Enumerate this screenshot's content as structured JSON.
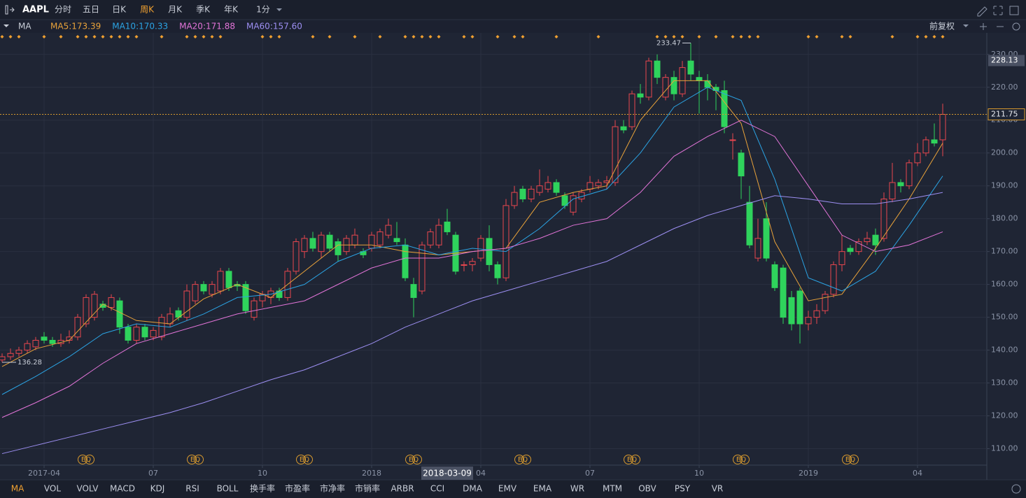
{
  "toolbar": {
    "symbol": "AAPL",
    "periods": [
      "分时",
      "五日",
      "日K",
      "周K",
      "月K",
      "季K",
      "年K"
    ],
    "active": 3,
    "interval": "1分"
  },
  "indicator_row": {
    "name": "MA",
    "adjust": "前复权"
  },
  "chart_data": {
    "type": "candlestick",
    "ohlc": [
      [
        137,
        139,
        136.28,
        138
      ],
      [
        138,
        140.5,
        137,
        139
      ],
      [
        139,
        141,
        138,
        140
      ],
      [
        140,
        143,
        139,
        142
      ],
      [
        141,
        144,
        140,
        143
      ],
      [
        144,
        145.5,
        142,
        143
      ],
      [
        143,
        144,
        141,
        142
      ],
      [
        142,
        145,
        141,
        143
      ],
      [
        143,
        146,
        142,
        144
      ],
      [
        144,
        151,
        143,
        150
      ],
      [
        148,
        157,
        147,
        156
      ],
      [
        150,
        158,
        149,
        157
      ],
      [
        154,
        155,
        152,
        153
      ],
      [
        153,
        157,
        152,
        156
      ],
      [
        155,
        156,
        145,
        147
      ],
      [
        147,
        148,
        142,
        143
      ],
      [
        143,
        148,
        142,
        147
      ],
      [
        147,
        148,
        143,
        144
      ],
      [
        144,
        147,
        143,
        146
      ],
      [
        144,
        151,
        143,
        150
      ],
      [
        148,
        153,
        147,
        151
      ],
      [
        152,
        153,
        149,
        150
      ],
      [
        150,
        160,
        149,
        158
      ],
      [
        155,
        161,
        154,
        160
      ],
      [
        160,
        161,
        157,
        158
      ],
      [
        157,
        161,
        156,
        160
      ],
      [
        158,
        165,
        157,
        164
      ],
      [
        164,
        165,
        158,
        159
      ],
      [
        160,
        161,
        158,
        159.5
      ],
      [
        160,
        161,
        151,
        152
      ],
      [
        150,
        156,
        149,
        155
      ],
      [
        155,
        158,
        153,
        157
      ],
      [
        156,
        159,
        154,
        158
      ],
      [
        158,
        159,
        155,
        156
      ],
      [
        156,
        165,
        155,
        164
      ],
      [
        164,
        174,
        163,
        173
      ],
      [
        170,
        175,
        168,
        174
      ],
      [
        174,
        176,
        170,
        171
      ],
      [
        170,
        176,
        168,
        175
      ],
      [
        175,
        176,
        170,
        171
      ],
      [
        173,
        174,
        167,
        169
      ],
      [
        170,
        175,
        169,
        174
      ],
      [
        172,
        177,
        171,
        175
      ],
      [
        170,
        171,
        168,
        169
      ],
      [
        171,
        176,
        170,
        175
      ],
      [
        172,
        177,
        171,
        176
      ],
      [
        175,
        180,
        174,
        178
      ],
      [
        174,
        179,
        172,
        173
      ],
      [
        172,
        174,
        161,
        162
      ],
      [
        160,
        162,
        150,
        156
      ],
      [
        158,
        173,
        157,
        172
      ],
      [
        172,
        177,
        171,
        176
      ],
      [
        172,
        180,
        171,
        178
      ],
      [
        179,
        183,
        175,
        176
      ],
      [
        175,
        176,
        163,
        164
      ],
      [
        166,
        167,
        164,
        166
      ],
      [
        166,
        168,
        164,
        167
      ],
      [
        168,
        175,
        167,
        174
      ],
      [
        174,
        178,
        164,
        166
      ],
      [
        166,
        167,
        160,
        162
      ],
      [
        162,
        186,
        161,
        184
      ],
      [
        184,
        190,
        183,
        188
      ],
      [
        189,
        190,
        185,
        186
      ],
      [
        186,
        190,
        185,
        189
      ],
      [
        188,
        195,
        187,
        190
      ],
      [
        189,
        193,
        188,
        191
      ],
      [
        191,
        192,
        187,
        188
      ],
      [
        187,
        188,
        183,
        184
      ],
      [
        182,
        188,
        181,
        187
      ],
      [
        186,
        189,
        185,
        188
      ],
      [
        189,
        193,
        188,
        191
      ],
      [
        190,
        192,
        189,
        191
      ],
      [
        191,
        193,
        189,
        191.5
      ],
      [
        191,
        210,
        190,
        208
      ],
      [
        208,
        210,
        206,
        207
      ],
      [
        208,
        219,
        207,
        218
      ],
      [
        218,
        221,
        215,
        217
      ],
      [
        217,
        229,
        216,
        228
      ],
      [
        228,
        230,
        221,
        223
      ],
      [
        217,
        224,
        216,
        223
      ],
      [
        223,
        225,
        216,
        218
      ],
      [
        218,
        228,
        217,
        226
      ],
      [
        228,
        233.47,
        222,
        224
      ],
      [
        223,
        225,
        212,
        222
      ],
      [
        222,
        224,
        216,
        220
      ],
      [
        220,
        221,
        213,
        219
      ],
      [
        219,
        222,
        206,
        208
      ],
      [
        204,
        206,
        198,
        204
      ],
      [
        200,
        201,
        186,
        193
      ],
      [
        185,
        190,
        171,
        172
      ],
      [
        168,
        180,
        167,
        174
      ],
      [
        180,
        185,
        167,
        168
      ],
      [
        166,
        167,
        158,
        159
      ],
      [
        165,
        166,
        148,
        150
      ],
      [
        156,
        158,
        146,
        148
      ],
      [
        158,
        159,
        142,
        148
      ],
      [
        148,
        152,
        146,
        150
      ],
      [
        150,
        154,
        148,
        152
      ],
      [
        152,
        158,
        151,
        157
      ],
      [
        157,
        167,
        156,
        166
      ],
      [
        166,
        175,
        164,
        170
      ],
      [
        171,
        172,
        169,
        170
      ],
      [
        170,
        174,
        169,
        173
      ],
      [
        173,
        176,
        172,
        174
      ],
      [
        175,
        177,
        169,
        172
      ],
      [
        174,
        188,
        173,
        186
      ],
      [
        186,
        197,
        185,
        191
      ],
      [
        191,
        192,
        188,
        190
      ],
      [
        190,
        198,
        189,
        197
      ],
      [
        197,
        203,
        196,
        200
      ],
      [
        200,
        205,
        199,
        204
      ],
      [
        204,
        209,
        202,
        203
      ],
      [
        204,
        215,
        199,
        211.75
      ]
    ],
    "colors": {
      "up": "#e8464e",
      "down": "#2fd35c"
    },
    "xlim": [
      -0.25,
      117.25
    ],
    "ylim": [
      105,
      234
    ],
    "yticks": [
      {
        "value": 110,
        "label": "110.00"
      },
      {
        "value": 120,
        "label": "120.00"
      },
      {
        "value": 130,
        "label": "130.00"
      },
      {
        "value": 140,
        "label": "140.00"
      },
      {
        "value": 150,
        "label": "150.00"
      },
      {
        "value": 160,
        "label": "160.00"
      },
      {
        "value": 170,
        "label": "170.00"
      },
      {
        "value": 180,
        "label": "180.00"
      },
      {
        "value": 190,
        "label": "190.00"
      },
      {
        "value": 200,
        "label": "200.00"
      },
      {
        "value": 210,
        "label": "210.00"
      },
      {
        "value": 220,
        "label": "220.00"
      },
      {
        "value": 230,
        "label": "230.00"
      }
    ],
    "xticks": [
      {
        "value": 5,
        "label": "2017-04"
      },
      {
        "value": 18,
        "label": "07"
      },
      {
        "value": 31,
        "label": "10"
      },
      {
        "value": 44,
        "label": "2018"
      },
      {
        "value": 57,
        "label": "04"
      },
      {
        "value": 70,
        "label": "07"
      },
      {
        "value": 83,
        "label": "10"
      },
      {
        "value": 96,
        "label": "2019"
      },
      {
        "value": 109,
        "label": "04"
      }
    ],
    "grid": true,
    "price_line": true,
    "moving_averages": {
      "x": [
        0,
        4,
        8,
        12,
        16,
        20,
        24,
        28,
        32,
        36,
        40,
        44,
        48,
        52,
        56,
        60,
        64,
        68,
        72,
        76,
        80,
        84,
        88,
        92,
        96,
        100,
        104,
        108,
        112
      ],
      "series": [
        {
          "label": "MA5:173.39",
          "color": "#e8a23a",
          "values": [
            135,
            140.4,
            143,
            154,
            149,
            148,
            155.6,
            160,
            156,
            164,
            172,
            172,
            170,
            169,
            170,
            171,
            185,
            188,
            190,
            210,
            222,
            222,
            209,
            173,
            155,
            157,
            171,
            186,
            203
          ]
        },
        {
          "label": "MA10:170.33",
          "color": "#2ba3e3",
          "values": [
            126.5,
            132,
            138,
            145,
            148,
            147,
            151,
            156,
            157,
            160,
            167,
            171,
            172,
            169,
            171,
            170,
            177,
            186,
            189,
            200,
            214,
            220,
            216,
            192,
            162,
            158,
            164,
            178,
            193
          ]
        },
        {
          "label": "MA20:171.88",
          "color": "#e274d8",
          "values": [
            119.5,
            124,
            129,
            136,
            142,
            145,
            148,
            151,
            153,
            155,
            160,
            165,
            168,
            168,
            170,
            171,
            174,
            178,
            180,
            188,
            199,
            205,
            210,
            205,
            190,
            175,
            170,
            172,
            176
          ]
        },
        {
          "label": "MA60:157.60",
          "color": "#9d8ff2",
          "values": [
            108.5,
            111,
            113.5,
            116,
            118.5,
            121,
            124,
            127.5,
            131,
            134,
            138,
            142,
            147,
            151,
            155,
            158,
            161,
            164,
            167,
            172,
            177,
            181,
            184,
            187,
            186,
            184.5,
            184.5,
            186,
            188
          ]
        }
      ]
    },
    "crosshair": {
      "date": "2018-03-09",
      "price": 228.13
    },
    "events": {
      "label": "EQ",
      "x": [
        10,
        23,
        36,
        49,
        62,
        75,
        88,
        101
      ]
    },
    "signals": [
      0,
      1,
      2,
      5,
      7,
      9,
      10,
      11,
      12,
      13,
      14,
      15,
      16,
      19,
      22,
      23,
      24,
      25,
      26,
      31,
      32,
      33,
      37,
      39,
      42,
      45,
      48,
      49,
      50,
      51,
      52,
      55,
      56,
      59,
      61,
      62,
      66,
      71,
      78,
      79,
      80,
      81,
      83,
      85,
      87,
      88,
      89,
      90,
      96,
      97,
      100,
      101,
      106,
      109,
      110,
      111,
      112
    ]
  },
  "indicator_tabs": {
    "items": [
      "MA",
      "VOL",
      "VOLV",
      "MACD",
      "KDJ",
      "RSI",
      "BOLL",
      "换手率",
      "市盈率",
      "市净率",
      "市销率",
      "ARBR",
      "CCI",
      "DMA",
      "EMV",
      "EMA",
      "WR",
      "MTM",
      "OBV",
      "PSY",
      "VR"
    ],
    "active": 0
  }
}
